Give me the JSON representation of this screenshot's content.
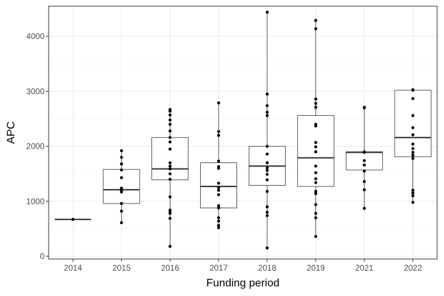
{
  "chart_data": {
    "type": "boxplot",
    "title": "",
    "xlabel": "Funding period",
    "ylabel": "APC",
    "categories": [
      "2014",
      "2015",
      "2016",
      "2017",
      "2018",
      "2019",
      "2021",
      "2022"
    ],
    "ylim": [
      -50,
      4550
    ],
    "y_ticks": [
      0,
      1000,
      2000,
      3000,
      4000
    ],
    "y_tick_labels": [
      "0",
      "1000",
      "2000",
      "3000",
      "4000"
    ],
    "grid": true,
    "legend": "none",
    "boxes": [
      {
        "category": "2014",
        "q1": 670,
        "median": 670,
        "q3": 670,
        "whisker_low": 670,
        "whisker_high": 670
      },
      {
        "category": "2015",
        "q1": 960,
        "median": 1210,
        "q3": 1580,
        "whisker_low": 610,
        "whisker_high": 1920
      },
      {
        "category": "2016",
        "q1": 1390,
        "median": 1590,
        "q3": 2160,
        "whisker_low": 180,
        "whisker_high": 2670
      },
      {
        "category": "2017",
        "q1": 880,
        "median": 1270,
        "q3": 1700,
        "whisker_low": 520,
        "whisker_high": 2790
      },
      {
        "category": "2018",
        "q1": 1290,
        "median": 1640,
        "q3": 2000,
        "whisker_low": 150,
        "whisker_high": 4440
      },
      {
        "category": "2019",
        "q1": 1270,
        "median": 1790,
        "q3": 2560,
        "whisker_low": 360,
        "whisker_high": 4290
      },
      {
        "category": "2021",
        "q1": 1570,
        "median": 1890,
        "q3": 1900,
        "whisker_low": 870,
        "whisker_high": 2700
      },
      {
        "category": "2022",
        "q1": 1810,
        "median": 2160,
        "q3": 3020,
        "whisker_low": 980,
        "whisker_high": 3030
      }
    ],
    "points": [
      {
        "category": "2014",
        "values": [
          670
        ]
      },
      {
        "category": "2015",
        "values": [
          1920,
          1800,
          1680,
          1570,
          1430,
          1240,
          1200,
          1170,
          960,
          820,
          610
        ]
      },
      {
        "category": "2016",
        "values": [
          2670,
          2640,
          2570,
          2480,
          2400,
          2280,
          2160,
          2080,
          1950,
          1700,
          1640,
          1590,
          1500,
          1400,
          1080,
          840,
          820,
          780,
          690,
          180
        ]
      },
      {
        "category": "2017",
        "values": [
          2790,
          2270,
          2200,
          1730,
          1630,
          1600,
          1330,
          1250,
          1200,
          1120,
          920,
          880,
          700,
          640,
          560,
          520
        ]
      },
      {
        "category": "2018",
        "values": [
          4440,
          2950,
          2740,
          2620,
          2560,
          2000,
          1860,
          1700,
          1610,
          1560,
          1490,
          1390,
          1180,
          900,
          800,
          740,
          150
        ]
      },
      {
        "category": "2019",
        "values": [
          4290,
          4140,
          2860,
          2780,
          2710,
          2400,
          2370,
          2070,
          1990,
          1900,
          1640,
          1520,
          1410,
          1340,
          1180,
          1140,
          940,
          780,
          700,
          360
        ]
      },
      {
        "category": "2021",
        "values": [
          2710,
          2700,
          1900,
          1890,
          1740,
          1660,
          1550,
          1360,
          1210,
          870
        ]
      },
      {
        "category": "2022",
        "values": [
          3030,
          3020,
          2870,
          2560,
          2340,
          2210,
          2040,
          1960,
          1890,
          1840,
          1780,
          1200,
          1150,
          1100,
          980
        ]
      }
    ]
  }
}
